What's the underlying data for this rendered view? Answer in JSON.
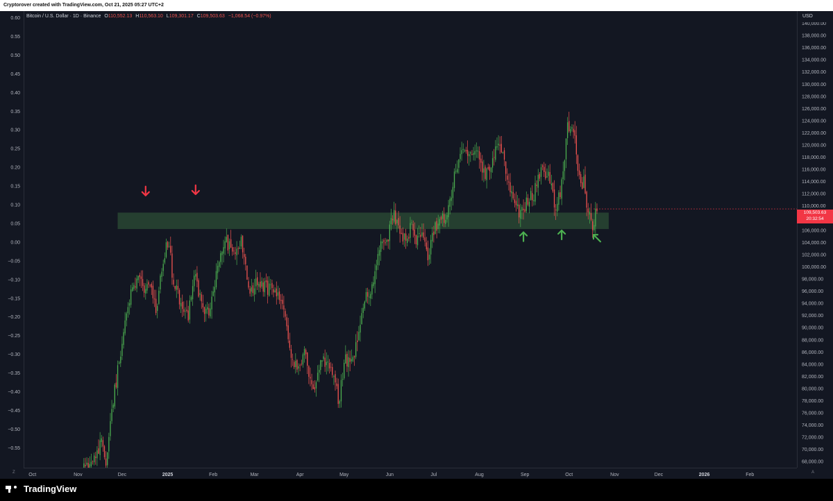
{
  "watermark": "Cryptorover created with TradingView.com, Oct 21, 2025 05:27 UTC+2",
  "legend": {
    "symbol": "Bitcoin / U.S. Dollar · 1D · Binance",
    "o_label": "O",
    "o_value": "110,552.13",
    "h_label": "H",
    "h_value": "110,563.10",
    "l_label": "L",
    "l_value": "109,301.17",
    "c_label": "C",
    "c_value": "109,503.63",
    "change": "−1,068.54 (−0.97%)"
  },
  "currency": "USD",
  "current_price": {
    "price": "109,503.63",
    "countdown": "20:32:54"
  },
  "left_axis": {
    "labels": [
      "0.60",
      "0.55",
      "0.50",
      "0.45",
      "0.40",
      "0.35",
      "0.30",
      "0.25",
      "0.20",
      "0.15",
      "0.10",
      "0.05",
      "0.00",
      "−0.05",
      "−0.10",
      "−0.15",
      "−0.20",
      "−0.25",
      "−0.30",
      "−0.35",
      "−0.40",
      "−0.45",
      "−0.50",
      "−0.55"
    ]
  },
  "right_axis": {
    "labels": [
      "140,000.00",
      "138,000.00",
      "136,000.00",
      "134,000.00",
      "132,000.00",
      "130,000.00",
      "128,000.00",
      "126,000.00",
      "124,000.00",
      "122,000.00",
      "120,000.00",
      "118,000.00",
      "116,000.00",
      "114,000.00",
      "112,000.00",
      "110,000.00",
      "108,000.00",
      "106,000.00",
      "104,000.00",
      "102,000.00",
      "100,000.00",
      "98,000.00",
      "96,000.00",
      "94,000.00",
      "92,000.00",
      "90,000.00",
      "88,000.00",
      "86,000.00",
      "84,000.00",
      "82,000.00",
      "80,000.00",
      "78,000.00",
      "76,000.00",
      "74,000.00",
      "72,000.00",
      "70,000.00",
      "68,000.00"
    ]
  },
  "time_axis": {
    "labels": [
      "Oct",
      "Nov",
      "Dec",
      "2025",
      "Feb",
      "Mar",
      "Apr",
      "May",
      "Jun",
      "Jul",
      "Aug",
      "Sep",
      "Oct",
      "Nov",
      "Dec",
      "2026",
      "Feb"
    ],
    "bold": [
      false,
      false,
      false,
      true,
      false,
      false,
      false,
      false,
      false,
      false,
      false,
      false,
      false,
      false,
      false,
      true,
      false
    ]
  },
  "corner_left": "Z",
  "corner_right": "A",
  "brand": "TradingView",
  "colors": {
    "background": "#131722",
    "up": "#4caf50",
    "down": "#ef5350",
    "zone": "#2b4a35",
    "down_arrow": "#f23645",
    "up_arrow": "#4caf50",
    "price_tag": "#f23645"
  },
  "chart_data": {
    "type": "candlestick",
    "symbol": "BTCUSD",
    "interval": "1D",
    "y_range": [
      67000,
      142000
    ],
    "support_zone": [
      106200,
      108900
    ],
    "control_points": [
      {
        "x": 0.0,
        "y": 66000
      },
      {
        "x": 0.033,
        "y": 69000
      },
      {
        "x": 0.038,
        "y": 72000
      },
      {
        "x": 0.046,
        "y": 68000
      },
      {
        "x": 0.055,
        "y": 75500
      },
      {
        "x": 0.074,
        "y": 88500
      },
      {
        "x": 0.083,
        "y": 94000
      },
      {
        "x": 0.1,
        "y": 99000
      },
      {
        "x": 0.11,
        "y": 95000
      },
      {
        "x": 0.12,
        "y": 97500
      },
      {
        "x": 0.13,
        "y": 93000
      },
      {
        "x": 0.14,
        "y": 101000
      },
      {
        "x": 0.15,
        "y": 104500
      },
      {
        "x": 0.158,
        "y": 97000
      },
      {
        "x": 0.17,
        "y": 94500
      },
      {
        "x": 0.183,
        "y": 92000
      },
      {
        "x": 0.193,
        "y": 99000
      },
      {
        "x": 0.205,
        "y": 93500
      },
      {
        "x": 0.218,
        "y": 92000
      },
      {
        "x": 0.23,
        "y": 99500
      },
      {
        "x": 0.245,
        "y": 104500
      },
      {
        "x": 0.258,
        "y": 101500
      },
      {
        "x": 0.27,
        "y": 104500
      },
      {
        "x": 0.283,
        "y": 96000
      },
      {
        "x": 0.3,
        "y": 97500
      },
      {
        "x": 0.32,
        "y": 96000
      },
      {
        "x": 0.338,
        "y": 95000
      },
      {
        "x": 0.35,
        "y": 86500
      },
      {
        "x": 0.363,
        "y": 83000
      },
      {
        "x": 0.375,
        "y": 86000
      },
      {
        "x": 0.39,
        "y": 79500
      },
      {
        "x": 0.403,
        "y": 85000
      },
      {
        "x": 0.42,
        "y": 83000
      },
      {
        "x": 0.432,
        "y": 78000
      },
      {
        "x": 0.443,
        "y": 84500
      },
      {
        "x": 0.458,
        "y": 85500
      },
      {
        "x": 0.472,
        "y": 94000
      },
      {
        "x": 0.486,
        "y": 96500
      },
      {
        "x": 0.5,
        "y": 103000
      },
      {
        "x": 0.514,
        "y": 105000
      },
      {
        "x": 0.522,
        "y": 109000
      },
      {
        "x": 0.531,
        "y": 106500
      },
      {
        "x": 0.543,
        "y": 104000
      },
      {
        "x": 0.553,
        "y": 107000
      },
      {
        "x": 0.563,
        "y": 104000
      },
      {
        "x": 0.572,
        "y": 105800
      },
      {
        "x": 0.58,
        "y": 101500
      },
      {
        "x": 0.59,
        "y": 106500
      },
      {
        "x": 0.6,
        "y": 107500
      },
      {
        "x": 0.612,
        "y": 108500
      },
      {
        "x": 0.62,
        "y": 113000
      },
      {
        "x": 0.633,
        "y": 118500
      },
      {
        "x": 0.65,
        "y": 117800
      },
      {
        "x": 0.664,
        "y": 118500
      },
      {
        "x": 0.675,
        "y": 114500
      },
      {
        "x": 0.687,
        "y": 117500
      },
      {
        "x": 0.699,
        "y": 121000
      },
      {
        "x": 0.708,
        "y": 116500
      },
      {
        "x": 0.72,
        "y": 111500
      },
      {
        "x": 0.732,
        "y": 108500
      },
      {
        "x": 0.743,
        "y": 110500
      },
      {
        "x": 0.755,
        "y": 112000
      },
      {
        "x": 0.77,
        "y": 116000
      },
      {
        "x": 0.783,
        "y": 114000
      },
      {
        "x": 0.792,
        "y": 109500
      },
      {
        "x": 0.801,
        "y": 113000
      },
      {
        "x": 0.812,
        "y": 123500
      },
      {
        "x": 0.822,
        "y": 122000
      },
      {
        "x": 0.832,
        "y": 113000
      },
      {
        "x": 0.838,
        "y": 114200
      },
      {
        "x": 0.846,
        "y": 108500
      },
      {
        "x": 0.853,
        "y": 106500
      },
      {
        "x": 0.86,
        "y": 109500
      }
    ],
    "arrows": [
      {
        "direction": "down",
        "x_date": "2024-12-17",
        "price": 112400,
        "color": "red"
      },
      {
        "direction": "down",
        "x_date": "2025-01-20",
        "price": 112600,
        "color": "red"
      },
      {
        "direction": "up",
        "x_date": "2025-08-31",
        "price": 105000,
        "color": "green"
      },
      {
        "direction": "up",
        "x_date": "2025-09-26",
        "price": 105300,
        "color": "green"
      },
      {
        "direction": "up-left",
        "x_date": "2025-10-20",
        "price": 104700,
        "color": "green"
      }
    ]
  }
}
